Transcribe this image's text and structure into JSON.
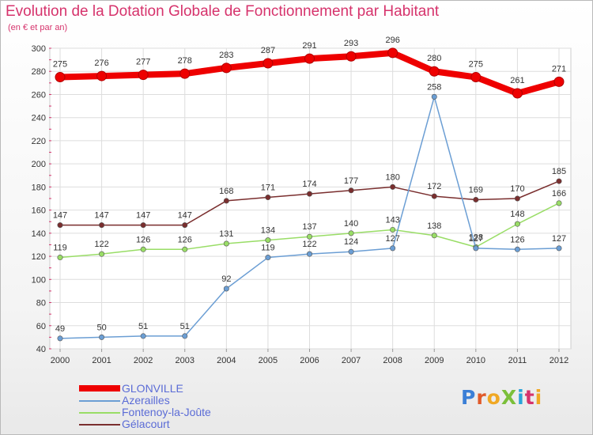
{
  "header": {
    "title": "Evolution de la Dotation Globale de Fonctionnement par Habitant",
    "subtitle": "(en € et par an)"
  },
  "logo": {
    "text": "ProXiti",
    "letters": [
      "P",
      "r",
      "o",
      "X",
      "i",
      "t",
      "i"
    ]
  },
  "chart_data": {
    "type": "line",
    "x": [
      2000,
      2001,
      2002,
      2003,
      2004,
      2005,
      2006,
      2007,
      2008,
      2009,
      2010,
      2011,
      2012
    ],
    "ylim": [
      40,
      300
    ],
    "yticks": [
      40,
      60,
      80,
      100,
      120,
      140,
      160,
      180,
      200,
      220,
      240,
      260,
      280,
      300
    ],
    "grid": true,
    "legend_position": "bottom-left",
    "series": [
      {
        "name": "GLONVILLE",
        "color": "#ee0000",
        "values": [
          275,
          276,
          277,
          278,
          283,
          287,
          291,
          293,
          296,
          280,
          275,
          261,
          271
        ]
      },
      {
        "name": "Azerailles",
        "color": "#6b9ed4",
        "values": [
          49,
          50,
          51,
          51,
          92,
          119,
          122,
          124,
          127,
          258,
          127,
          126,
          127
        ]
      },
      {
        "name": "Fontenoy-la-Joûte",
        "color": "#99dd66",
        "values": [
          119,
          122,
          126,
          126,
          131,
          134,
          137,
          140,
          143,
          138,
          128,
          148,
          166
        ]
      },
      {
        "name": "Gélacourt",
        "color": "#7a2e2e",
        "values": [
          147,
          147,
          147,
          147,
          168,
          171,
          174,
          177,
          180,
          172,
          169,
          170,
          185
        ]
      }
    ]
  }
}
